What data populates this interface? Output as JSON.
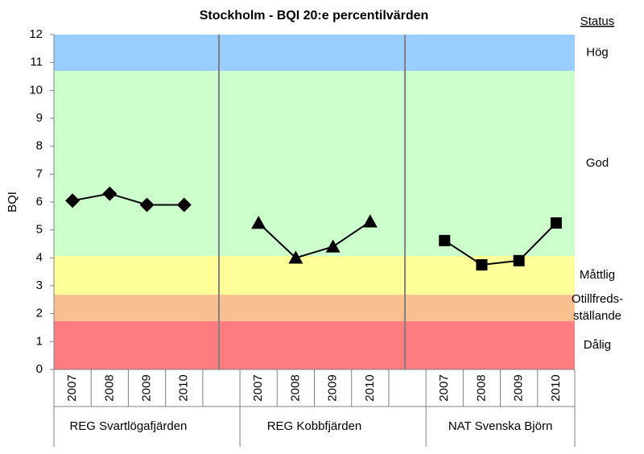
{
  "chart_data": {
    "type": "line",
    "title": "Stockholm  -  BQI  20:e percentilvärden",
    "y_label": "BQI",
    "status_title": "Status",
    "categories": [
      "2007",
      "2008",
      "2009",
      "2010",
      null,
      "2007",
      "2008",
      "2009",
      "2010",
      null,
      "2007",
      "2008",
      "2009",
      "2010"
    ],
    "groups": [
      "REG Svartlögafjärden",
      "REG Kobbfjärden",
      "NAT Svenska Björn"
    ],
    "series": [
      {
        "marker": "diamond",
        "color": "#000000",
        "values": [
          6.05,
          6.3,
          5.9,
          5.9,
          null,
          null,
          null,
          null,
          null,
          null,
          null,
          null,
          null,
          null
        ]
      },
      {
        "marker": "triangle",
        "color": "#000000",
        "values": [
          null,
          null,
          null,
          null,
          null,
          5.25,
          4.0,
          4.4,
          5.3,
          null,
          null,
          null,
          null,
          null
        ]
      },
      {
        "marker": "square",
        "color": "#000000",
        "values": [
          null,
          null,
          null,
          null,
          null,
          null,
          null,
          null,
          null,
          null,
          4.62,
          3.75,
          3.9,
          5.25
        ]
      }
    ],
    "bands": [
      {
        "label": [
          "Dålig"
        ],
        "from": 0,
        "to": 1.73,
        "color": "#ff7c80"
      },
      {
        "label": [
          "Otillfreds-",
          "ställande"
        ],
        "from": 1.73,
        "to": 2.68,
        "color": "#fabf8f"
      },
      {
        "label": [
          "Måttlig"
        ],
        "from": 2.68,
        "to": 4.07,
        "color": "#ffff99"
      },
      {
        "label": [
          "God"
        ],
        "from": 4.07,
        "to": 10.7,
        "color": "#ccffcc"
      },
      {
        "label": [
          "Hög"
        ],
        "from": 10.7,
        "to": 12,
        "color": "#99ccff"
      }
    ],
    "ylim": [
      0,
      12
    ],
    "yticks": [
      0,
      1,
      2,
      3,
      4,
      5,
      6,
      7,
      8,
      9,
      10,
      11,
      12
    ]
  }
}
